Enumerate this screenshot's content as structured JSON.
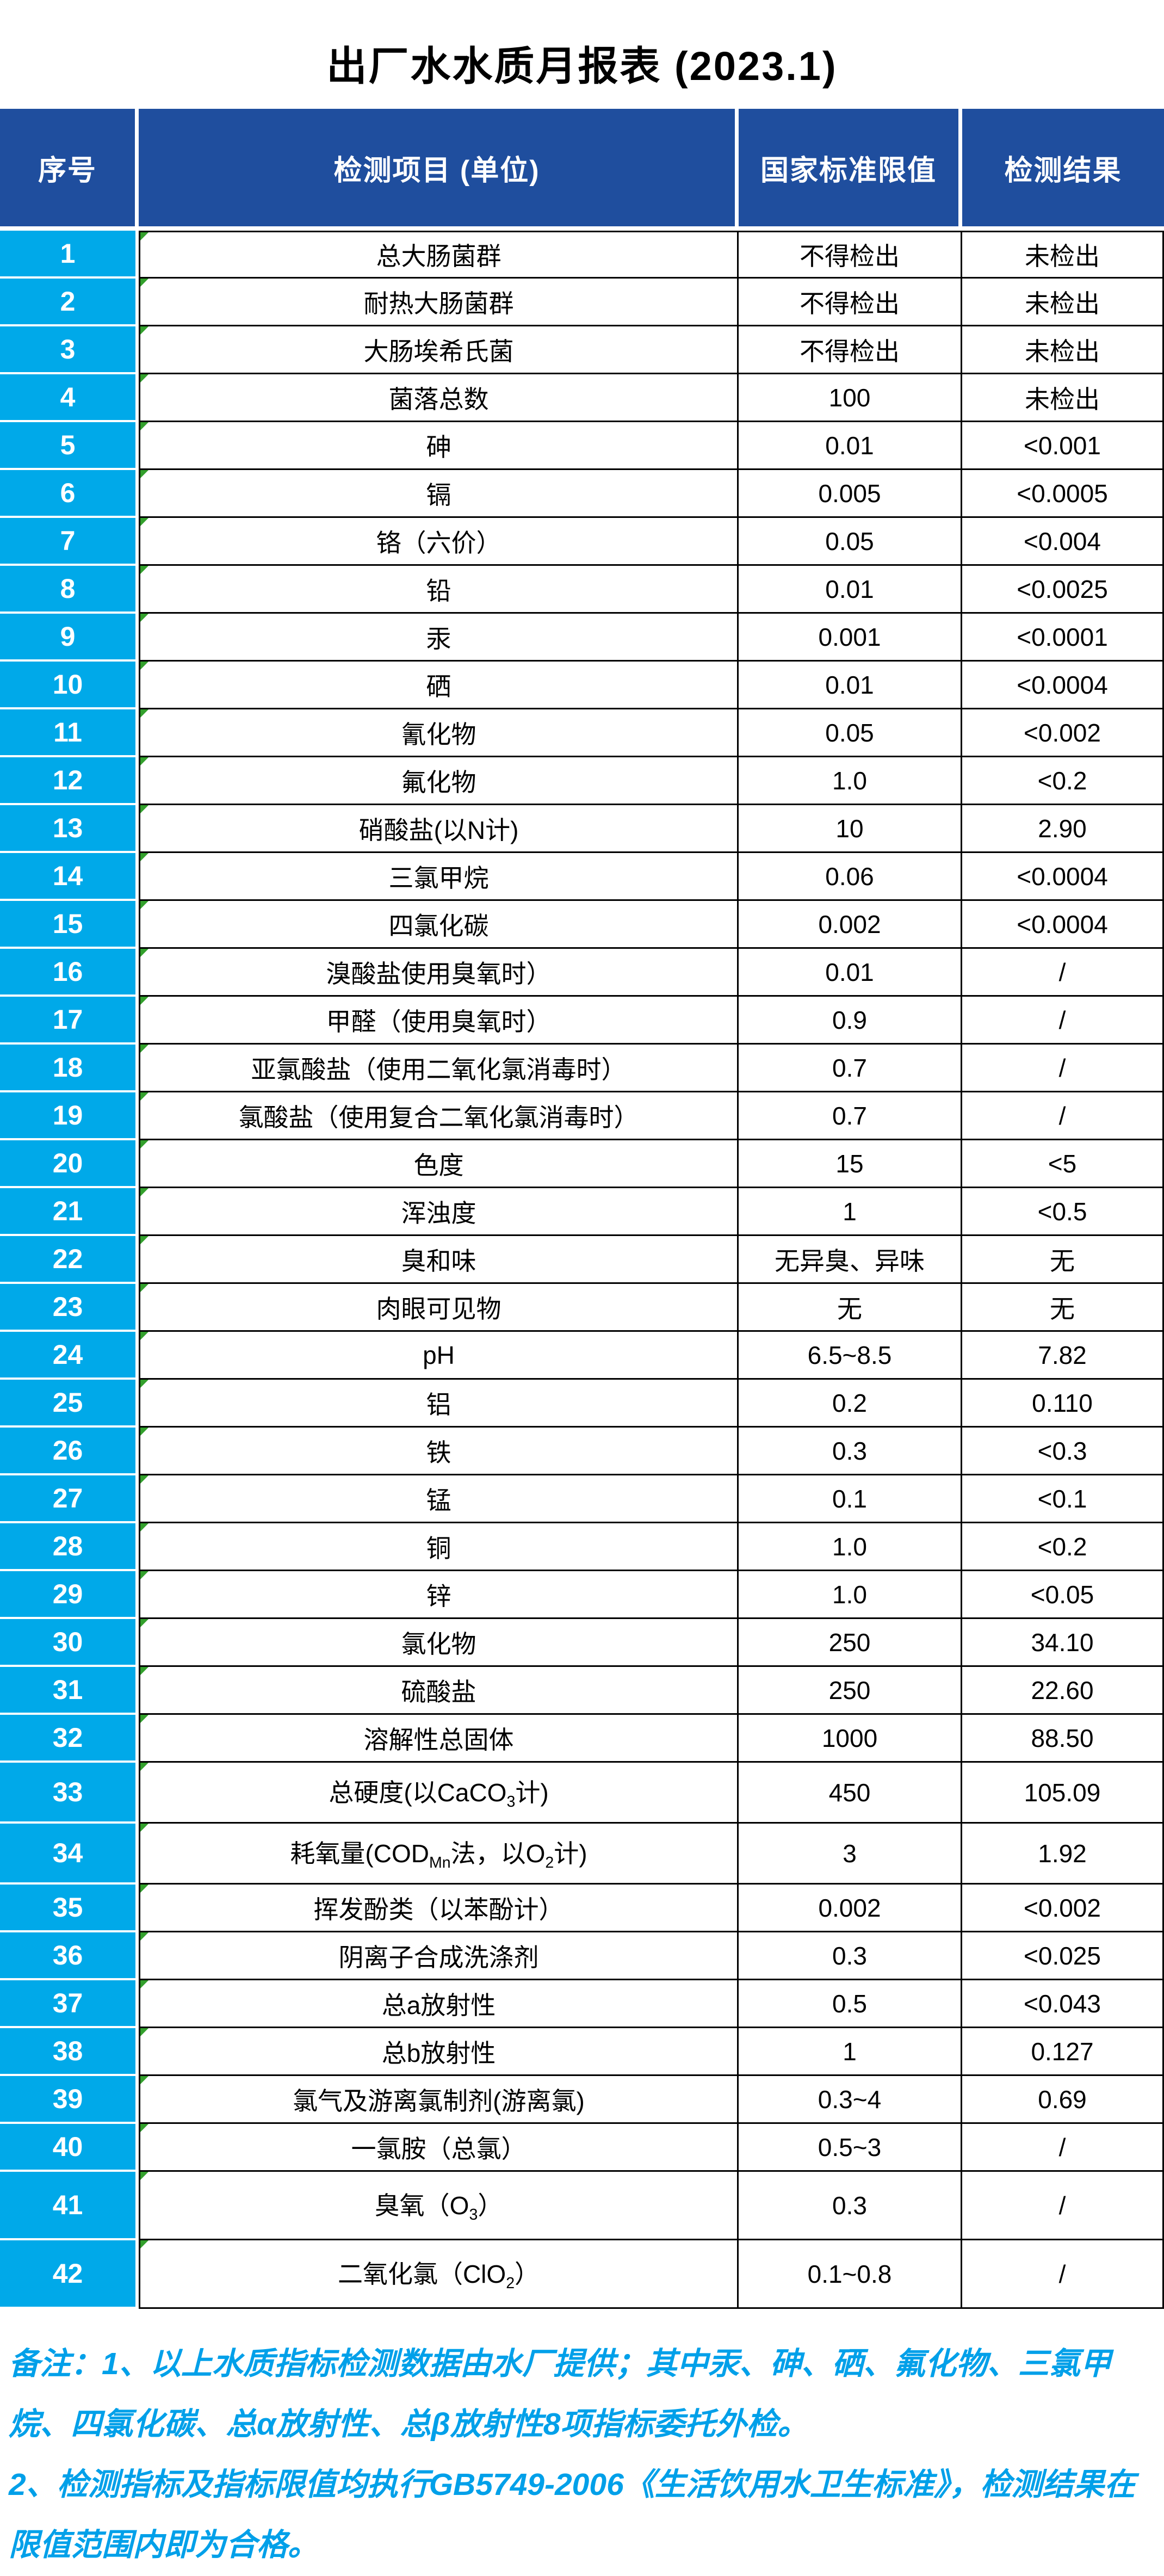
{
  "page": {
    "title": "出厂水水质月报表 (2023.1)"
  },
  "colors": {
    "header_bg": "#1f4e9e",
    "index_column_bg": "#00a9e9",
    "note_text": "#00a0e9",
    "grid_line": "#000000",
    "header_text": "#ffffff",
    "corner_marker": "#33a02c"
  },
  "table": {
    "columns": {
      "no": "序号",
      "item": "检测项目 (单位)",
      "limit": "国家标准限值",
      "result": "检测结果"
    },
    "rows": [
      {
        "no": "1",
        "item": "总大肠菌群",
        "limit": "不得检出",
        "result": "未检出"
      },
      {
        "no": "2",
        "item": "耐热大肠菌群",
        "limit": "不得检出",
        "result": "未检出"
      },
      {
        "no": "3",
        "item": "大肠埃希氏菌",
        "limit": "不得检出",
        "result": "未检出"
      },
      {
        "no": "4",
        "item": "菌落总数",
        "limit": "100",
        "result": "未检出"
      },
      {
        "no": "5",
        "item": "砷",
        "limit": "0.01",
        "result": "<0.001"
      },
      {
        "no": "6",
        "item": "镉",
        "limit": "0.005",
        "result": "<0.0005"
      },
      {
        "no": "7",
        "item": "铬（六价）",
        "limit": "0.05",
        "result": "<0.004"
      },
      {
        "no": "8",
        "item": "铅",
        "limit": "0.01",
        "result": "<0.0025"
      },
      {
        "no": "9",
        "item": "汞",
        "limit": "0.001",
        "result": "<0.0001"
      },
      {
        "no": "10",
        "item": "硒",
        "limit": "0.01",
        "result": "<0.0004"
      },
      {
        "no": "11",
        "item": "氰化物",
        "limit": "0.05",
        "result": "<0.002"
      },
      {
        "no": "12",
        "item": "氟化物",
        "limit": "1.0",
        "result": "<0.2"
      },
      {
        "no": "13",
        "item": "硝酸盐(以N计)",
        "limit": "10",
        "result": "2.90"
      },
      {
        "no": "14",
        "item": "三氯甲烷",
        "limit": "0.06",
        "result": "<0.0004"
      },
      {
        "no": "15",
        "item": "四氯化碳",
        "limit": "0.002",
        "result": "<0.0004"
      },
      {
        "no": "16",
        "item": "溴酸盐使用臭氧时）",
        "limit": "0.01",
        "result": "/"
      },
      {
        "no": "17",
        "item": "甲醛（使用臭氧时）",
        "limit": "0.9",
        "result": "/"
      },
      {
        "no": "18",
        "item": "亚氯酸盐（使用二氧化氯消毒时）",
        "limit": "0.7",
        "result": "/"
      },
      {
        "no": "19",
        "item": "氯酸盐（使用复合二氧化氯消毒时）",
        "limit": "0.7",
        "result": "/"
      },
      {
        "no": "20",
        "item": "色度",
        "limit": "15",
        "result": "<5"
      },
      {
        "no": "21",
        "item": "浑浊度",
        "limit": "1",
        "result": "<0.5"
      },
      {
        "no": "22",
        "item": "臭和味",
        "limit": "无异臭、异味",
        "result": "无"
      },
      {
        "no": "23",
        "item": "肉眼可见物",
        "limit": "无",
        "result": "无"
      },
      {
        "no": "24",
        "item": "pH",
        "limit": "6.5~8.5",
        "result": "7.82"
      },
      {
        "no": "25",
        "item": "铝",
        "limit": "0.2",
        "result": "0.110"
      },
      {
        "no": "26",
        "item": "铁",
        "limit": "0.3",
        "result": "<0.3"
      },
      {
        "no": "27",
        "item": "锰",
        "limit": "0.1",
        "result": "<0.1"
      },
      {
        "no": "28",
        "item": "铜",
        "limit": "1.0",
        "result": "<0.2"
      },
      {
        "no": "29",
        "item": "锌",
        "limit": "1.0",
        "result": "<0.05"
      },
      {
        "no": "30",
        "item": "氯化物",
        "limit": "250",
        "result": "34.10"
      },
      {
        "no": "31",
        "item": "硫酸盐",
        "limit": "250",
        "result": "22.60"
      },
      {
        "no": "32",
        "item": "溶解性总固体",
        "limit": "1000",
        "result": "88.50"
      },
      {
        "no": "33",
        "item": "总硬度(以CaCO<sub>3</sub>计)",
        "limit": "450",
        "result": "105.09"
      },
      {
        "no": "34",
        "item": "耗氧量(COD<sub>Mn</sub>法，以O<sub>2</sub>计)",
        "limit": "3",
        "result": "1.92"
      },
      {
        "no": "35",
        "item": "挥发酚类（以苯酚计）",
        "limit": "0.002",
        "result": "<0.002"
      },
      {
        "no": "36",
        "item": "阴离子合成洗涤剂",
        "limit": "0.3",
        "result": "<0.025"
      },
      {
        "no": "37",
        "item": "总a放射性",
        "limit": "0.5",
        "result": "<0.043"
      },
      {
        "no": "38",
        "item": "总b放射性",
        "limit": "1",
        "result": "0.127"
      },
      {
        "no": "39",
        "item": "氯气及游离氯制剂(游离氯)",
        "limit": "0.3~4",
        "result": "0.69"
      },
      {
        "no": "40",
        "item": "一氯胺（总氯）",
        "limit": "0.5~3",
        "result": "/"
      },
      {
        "no": "41",
        "item": "臭氧（O<sub>3</sub>）",
        "limit": "0.3",
        "result": "/"
      },
      {
        "no": "42",
        "item": "二氧化氯（ClO<sub>2</sub>）",
        "limit": "0.1~0.8",
        "result": "/"
      }
    ]
  },
  "notes": {
    "line1": "备注：1、以上水质指标检测数据由水厂提供；其中汞、砷、硒、氟化物、三氯甲烷、四氯化碳、总α放射性、总β放射性8项指标委托外检。",
    "line2": "2、检测指标及指标限值均执行GB5749-2006《生活饮用水卫生标准》，检测结果在限值范围内即为合格。"
  }
}
